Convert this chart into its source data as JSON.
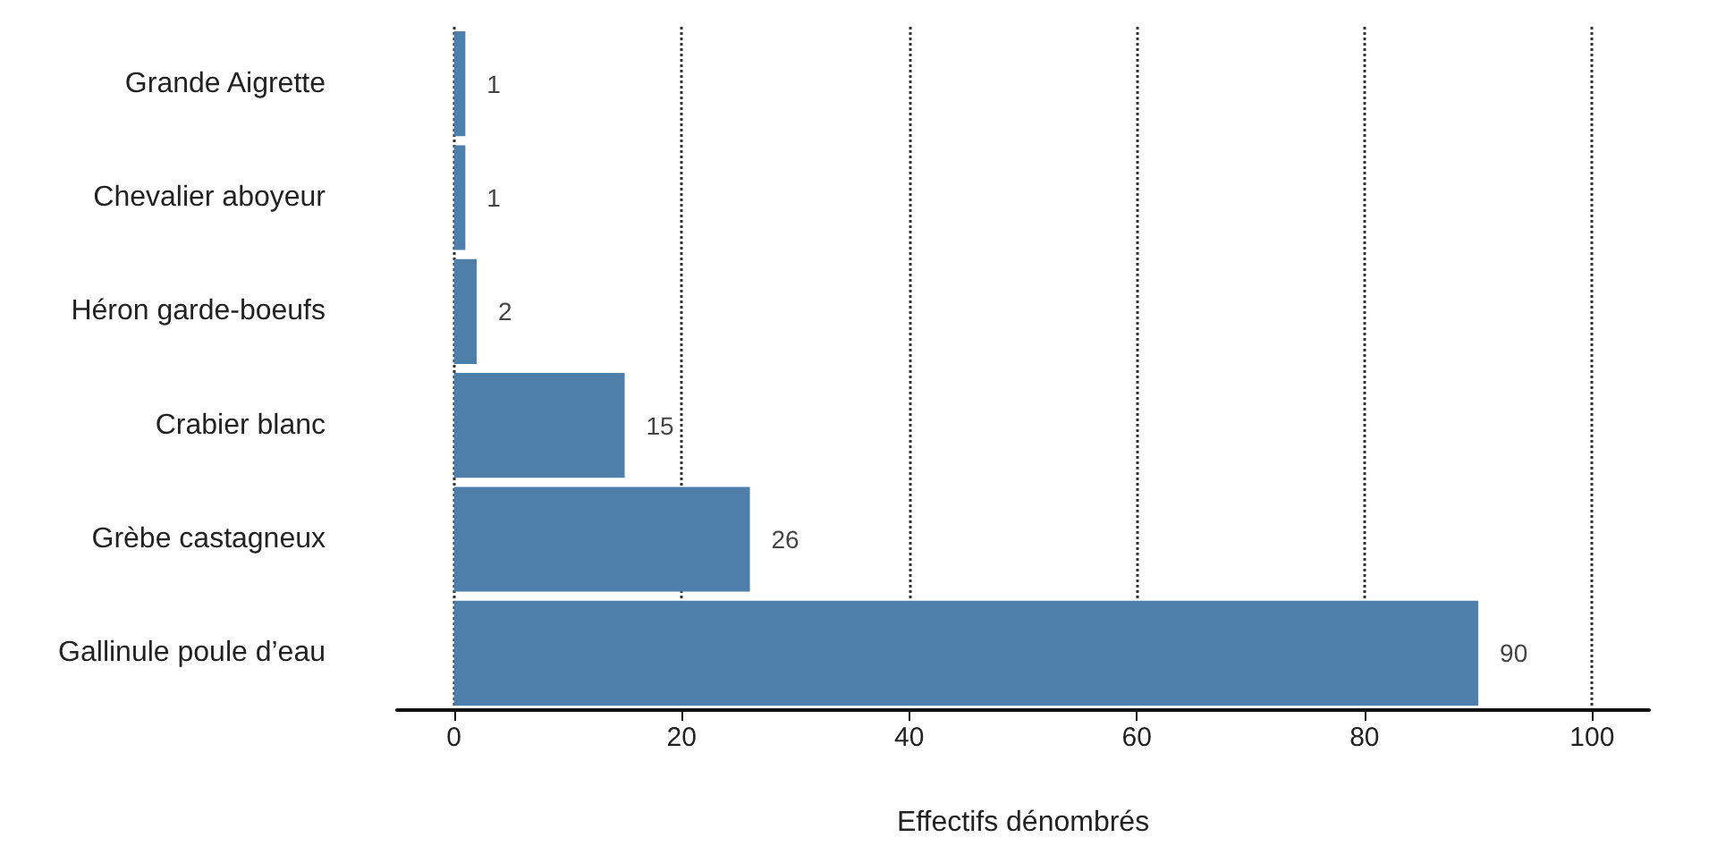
{
  "chart_data": {
    "type": "bar",
    "orientation": "horizontal",
    "xlabel": "Effectifs dénombrés",
    "categories": [
      "Grande Aigrette",
      "Chevalier aboyeur",
      "Héron garde-boeufs",
      "Crabier blanc",
      "Grèbe castagneux",
      "Gallinule poule d’eau"
    ],
    "values": [
      1,
      1,
      2,
      15,
      26,
      90
    ],
    "color": "#4e7faa",
    "data_labels": true,
    "xlim": [
      -5,
      105
    ],
    "xticks": [
      0,
      20,
      40,
      60,
      80,
      100
    ],
    "grid": "x"
  }
}
